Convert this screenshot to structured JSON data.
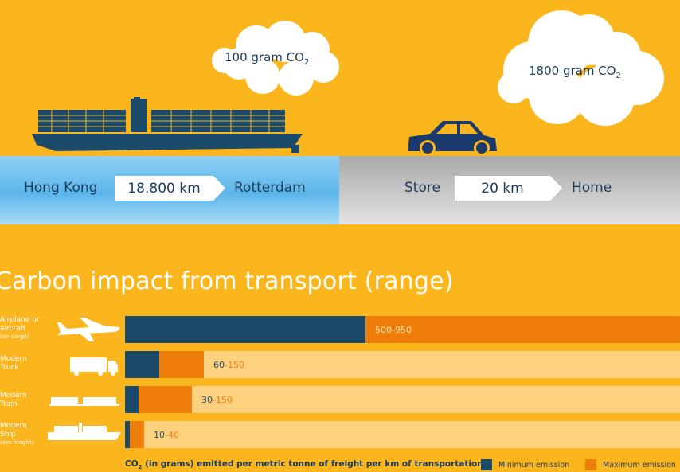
{
  "top": {
    "ship_cloud": {
      "value": "100 gram CO",
      "sub": "2"
    },
    "car_cloud": {
      "value": "1800 gram CO",
      "sub": "2"
    },
    "route_ship": {
      "from": "Hong Kong",
      "distance": "18.800 km",
      "to": "Rotterdam"
    },
    "route_car": {
      "from": "Store",
      "distance": "20 km",
      "to": "Home"
    }
  },
  "chart_data": {
    "type": "bar",
    "title": "Carbon impact from transport (range)",
    "categories": [
      {
        "line1": "Airplane or",
        "line2": "aircraft",
        "small": "(air cargo)"
      },
      {
        "line1": "Modern",
        "line2": "Truck",
        "small": ""
      },
      {
        "line1": "Modern",
        "line2": "Train",
        "small": ""
      },
      {
        "line1": "Modern",
        "line2": "Ship",
        "small": "(ses freight)"
      }
    ],
    "series": [
      {
        "name": "Minimum emission",
        "values": [
          500,
          60,
          30,
          10
        ]
      },
      {
        "name": "Maximum emission",
        "values": [
          950,
          150,
          150,
          40
        ]
      }
    ],
    "range_labels": [
      {
        "min": "500",
        "max": "950"
      },
      {
        "min": "60",
        "max": "150"
      },
      {
        "min": "30",
        "max": "150"
      },
      {
        "min": "10",
        "max": "40"
      }
    ],
    "xlim": [
      0,
      1150
    ],
    "xlabel": "CO2 (in grams) emitted per metric tonne of freight per km of transportation",
    "colors": {
      "min": "#1b4a6b",
      "max": "#ee7d0a",
      "track": "#fdd17d",
      "background": "#fbb51d"
    },
    "legend_position": "bottom-right"
  },
  "footer": {
    "xlabel_prefix": "CO",
    "xlabel_sub": "2",
    "xlabel_rest": " (in grams) emitted per metric tonne of freight per km of transportation"
  },
  "legend": {
    "min_label": "Minimum emission",
    "max_label": "Maximum emission"
  }
}
